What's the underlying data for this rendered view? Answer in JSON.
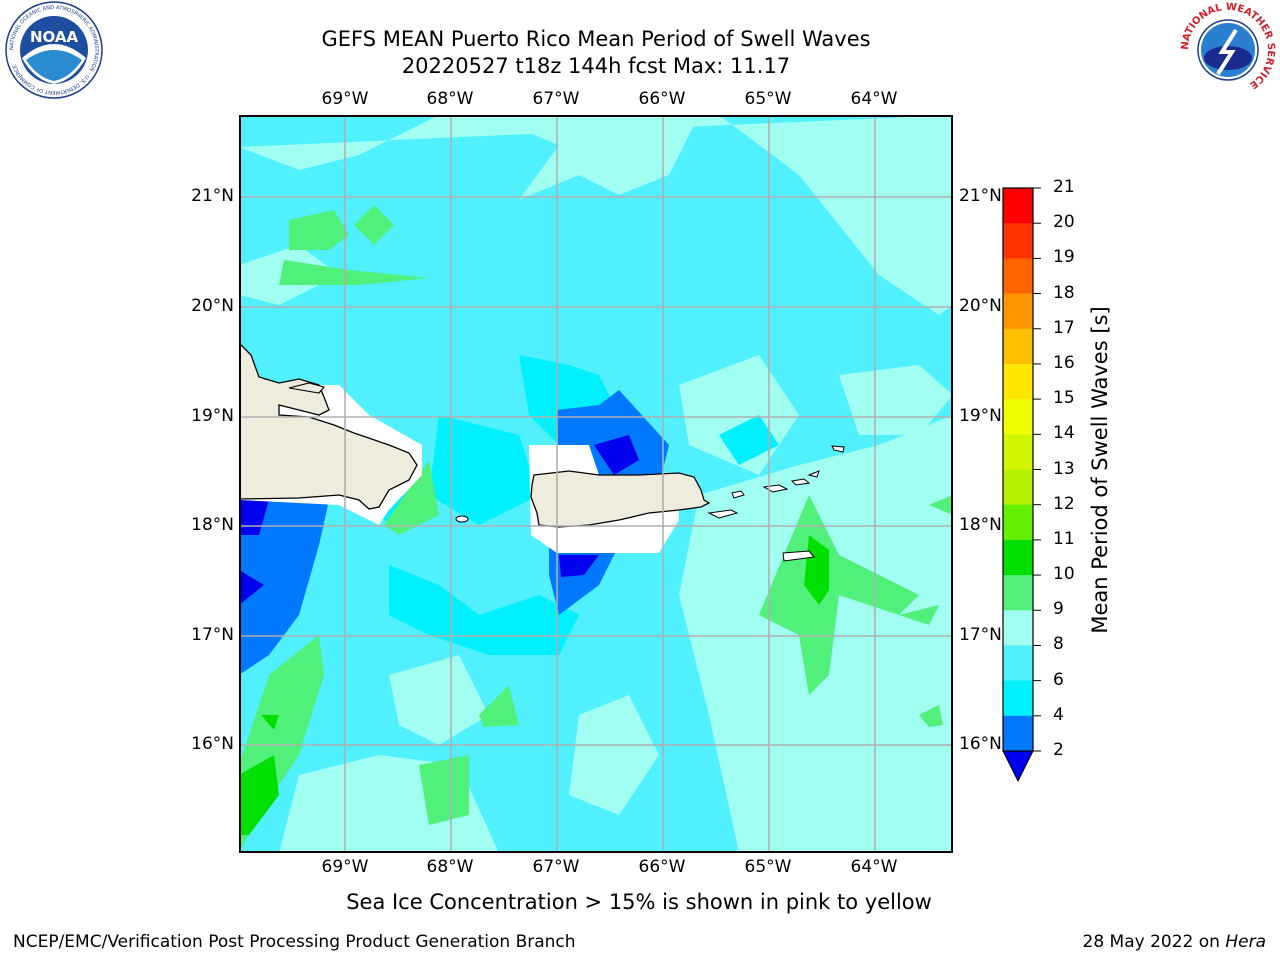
{
  "title": {
    "line1": "GEFS MEAN Puerto Rico Mean Period of Swell Waves",
    "line2": "20220527 t18z 144h fcst   Max: 11.17"
  },
  "map": {
    "lon_labels": [
      "69°W",
      "68°W",
      "67°W",
      "66°W",
      "65°W",
      "64°W"
    ],
    "lat_labels": [
      "21°N",
      "20°N",
      "19°N",
      "18°N",
      "17°N",
      "16°N"
    ],
    "lon_range": [
      -70.0,
      -63.25
    ],
    "lat_range": [
      15.0,
      21.75
    ],
    "ocean_color": "#50f0ff",
    "land_color": "#eeecdd"
  },
  "colorbar": {
    "label": "Mean Period of Swell Waves [s]",
    "ticks": [
      "21",
      "20",
      "19",
      "18",
      "17",
      "16",
      "15",
      "14",
      "13",
      "12",
      "11",
      "10",
      "9",
      "8",
      "6",
      "4",
      "2"
    ],
    "bins": [
      {
        "min": 20,
        "max": 21,
        "color": "#ff0000"
      },
      {
        "min": 19,
        "max": 20,
        "color": "#ff3200"
      },
      {
        "min": 18,
        "max": 19,
        "color": "#ff6400"
      },
      {
        "min": 17,
        "max": 18,
        "color": "#ff9600"
      },
      {
        "min": 16,
        "max": 17,
        "color": "#ffbe00"
      },
      {
        "min": 15,
        "max": 16,
        "color": "#ffe600"
      },
      {
        "min": 14,
        "max": 15,
        "color": "#f0ff00"
      },
      {
        "min": 13,
        "max": 14,
        "color": "#d2f500"
      },
      {
        "min": 12,
        "max": 13,
        "color": "#b4f000"
      },
      {
        "min": 11,
        "max": 12,
        "color": "#64f000"
      },
      {
        "min": 10,
        "max": 11,
        "color": "#00e000"
      },
      {
        "min": 9,
        "max": 10,
        "color": "#50f07a"
      },
      {
        "min": 8,
        "max": 9,
        "color": "#a0fff0"
      },
      {
        "min": 6,
        "max": 8,
        "color": "#50f0ff"
      },
      {
        "min": 4,
        "max": 6,
        "color": "#00f0ff"
      },
      {
        "min": 2,
        "max": 4,
        "color": "#0078ff"
      }
    ],
    "under_color": "#0000ee"
  },
  "footnote": "Sea Ice Concentration > 15% is shown in pink to yellow",
  "credit_left": "NCEP/EMC/Verification Post Processing Product Generation Branch",
  "credit_right_prefix": "28 May 2022 on ",
  "credit_right_machine": "Hera",
  "logos": {
    "noaa": {
      "text": "NOAA",
      "ring_text": "NATIONAL OCEANIC AND ATMOSPHERIC ADMINISTRATION · U.S. DEPARTMENT OF COMMERCE"
    },
    "nws": {
      "ring_text": "NATIONAL WEATHER SERVICE"
    }
  }
}
